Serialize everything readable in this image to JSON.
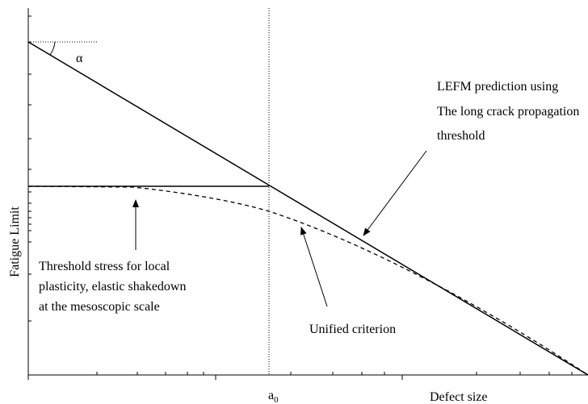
{
  "diagram": {
    "y_axis_label": "Fatigue Limit",
    "x_axis_label": "Defect size",
    "angle_symbol": "α",
    "critical_size": {
      "base": "a",
      "sub": "0"
    },
    "lefm_label": [
      "LEFM prediction using",
      "The long crack propagation",
      "threshold"
    ],
    "threshold_label": [
      "Threshold stress for local",
      "plasticity, elastic shakedown",
      "at the mesoscopic scale"
    ],
    "unified_label": "Unified criterion"
  }
}
